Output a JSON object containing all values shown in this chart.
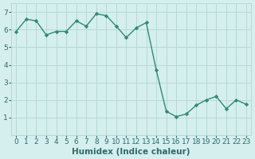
{
  "x": [
    0,
    1,
    2,
    3,
    4,
    5,
    6,
    7,
    8,
    9,
    10,
    11,
    12,
    13,
    14,
    15,
    16,
    17,
    18,
    19,
    20,
    21,
    22,
    23
  ],
  "y": [
    5.9,
    6.6,
    6.5,
    5.7,
    5.9,
    5.9,
    6.5,
    6.2,
    6.9,
    6.8,
    6.2,
    5.55,
    6.1,
    6.4,
    3.7,
    1.35,
    1.05,
    1.2,
    1.7,
    2.0,
    2.2,
    1.5,
    2.0,
    1.75
  ],
  "line_color": "#2e8b72",
  "marker": "D",
  "marker_size": 2.2,
  "line_width": 1.0,
  "bg_color": "#d5eeee",
  "grid_color": "#b8d8d8",
  "xlabel": "Humidex (Indice chaleur)",
  "xlabel_fontsize": 7.5,
  "tick_fontsize": 6.5,
  "xlim": [
    -0.5,
    23.5
  ],
  "ylim": [
    0,
    7.5
  ],
  "yticks": [
    1,
    2,
    3,
    4,
    5,
    6,
    7
  ],
  "xticks": [
    0,
    1,
    2,
    3,
    4,
    5,
    6,
    7,
    8,
    9,
    10,
    11,
    12,
    13,
    14,
    15,
    16,
    17,
    18,
    19,
    20,
    21,
    22,
    23
  ]
}
